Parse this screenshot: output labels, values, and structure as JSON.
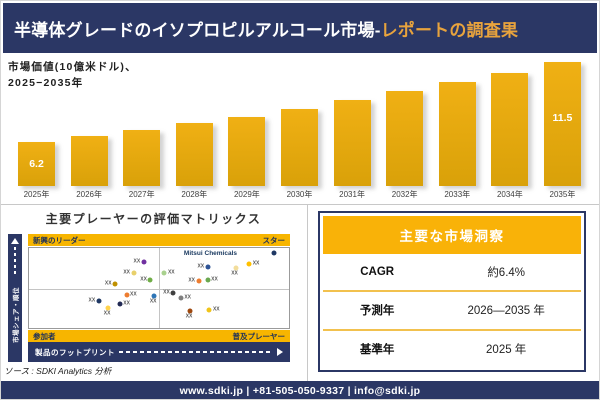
{
  "header": {
    "title_main": "半導体グレードのイソプロピルアルコール市場-",
    "title_accent": "レポートの調査果"
  },
  "chart": {
    "subtitle_line1": "市場価値(10億米ドル)、",
    "subtitle_line2": "2025−2035年",
    "first_bar_label": "6.2",
    "last_bar_label": "11.5"
  },
  "chart_data": [
    {
      "type": "bar",
      "title": "市場価値(10億米ドル)、2025−2035年",
      "categories": [
        "2025年",
        "2026年",
        "2027年",
        "2028年",
        "2029年",
        "2030年",
        "2031年",
        "2032年",
        "2033年",
        "2034年",
        "2035年"
      ],
      "values": [
        6.2,
        6.6,
        7.0,
        7.5,
        7.9,
        8.4,
        9.0,
        9.6,
        10.2,
        10.8,
        11.5
      ],
      "unit": "10億米ドル",
      "labeled_values": {
        "2025年": 6.2,
        "2035年": 11.5
      },
      "bar_color": "#E3A90F",
      "axis_note": "y軸は非ゼロ起点、目盛り非表示、最初と最後の棒のみデータラベル表示"
    },
    {
      "type": "scatter",
      "title": "主要プレーヤーの評価マトリックス",
      "xlabel": "製品のフットプリント",
      "ylabel": "市場シェア・順位",
      "quadrants": {
        "top_left": "新興のリーダー",
        "top_right": "スター",
        "bottom_left": "参加者",
        "bottom_right": "普及プレーヤー"
      },
      "named_point": {
        "label": "Mitsui Chemicals",
        "x": 69.8,
        "y": 2.5
      },
      "points": [
        {
          "x": 44.1,
          "y": 17.4,
          "color": "#7030A0",
          "label": "XX",
          "label_pos": "l"
        },
        {
          "x": 40.2,
          "y": 31.7,
          "color": "#E8D06B",
          "label": "XX",
          "label_pos": "l"
        },
        {
          "x": 46.7,
          "y": 40.0,
          "color": "#70AD47",
          "label": "XX",
          "label_pos": "l"
        },
        {
          "x": 33.1,
          "y": 44.8,
          "color": "#BF9000",
          "label": "XX",
          "label_pos": "l"
        },
        {
          "x": 52.1,
          "y": 31.7,
          "color": "#A9D18E",
          "label": "XX",
          "label_pos": "r"
        },
        {
          "x": 68.7,
          "y": 23.3,
          "color": "#2F5496",
          "label": "XX",
          "label_pos": "l"
        },
        {
          "x": 79.5,
          "y": 24.5,
          "color": "#F2DD9B",
          "label": "XX",
          "label_pos": "b"
        },
        {
          "x": 84.7,
          "y": 19.4,
          "color": "#FFC000",
          "label": "XX",
          "label_pos": "r"
        },
        {
          "x": 94.3,
          "y": 6.0,
          "color": "#1F3864",
          "label": "",
          "label_pos": "r"
        },
        {
          "x": 65.2,
          "y": 41.7,
          "color": "#ED7D31",
          "label": "XX",
          "label_pos": "l"
        },
        {
          "x": 68.7,
          "y": 40.5,
          "color": "#6AA84F",
          "label": "XX",
          "label_pos": "r"
        },
        {
          "x": 37.5,
          "y": 58.7,
          "color": "#ED7D31",
          "label": "XX",
          "label_pos": "r"
        },
        {
          "x": 48.2,
          "y": 59.9,
          "color": "#2E75B6",
          "label": "XX",
          "label_pos": "b"
        },
        {
          "x": 26.8,
          "y": 66.2,
          "color": "#1F3864",
          "label": "XX",
          "label_pos": "l"
        },
        {
          "x": 34.9,
          "y": 70.2,
          "color": "#222A54",
          "label": "XX",
          "label_pos": "r"
        },
        {
          "x": 30.5,
          "y": 74.5,
          "color": "#FFD34D",
          "label": "XX",
          "label_pos": "b"
        },
        {
          "x": 55.5,
          "y": 56.3,
          "color": "#404040",
          "label": "XX",
          "label_pos": "l"
        },
        {
          "x": 58.4,
          "y": 62.3,
          "color": "#7F7F7F",
          "label": "XX",
          "label_pos": "r"
        },
        {
          "x": 62.0,
          "y": 78.9,
          "color": "#9E480E",
          "label": "XX",
          "label_pos": "b"
        },
        {
          "x": 69.4,
          "y": 76.9,
          "color": "#F0C419",
          "label": "XX",
          "label_pos": "r"
        }
      ]
    }
  ],
  "matrix": {
    "section_title": "主要プレーヤーの評価マトリックス",
    "quadrant_top_left": "新興のリーダー",
    "quadrant_top_right": "スター",
    "quadrant_bottom_left": "参加者",
    "quadrant_bottom_right": "普及プレーヤー",
    "x_axis_label": "製品のフットプリント",
    "y_axis_label": "市場シェア・順位",
    "highlight_company": "Mitsui Chemicals"
  },
  "insights": {
    "header": "主要な市場洞察",
    "rows": [
      {
        "label": "CAGR",
        "value": "約6.4%"
      },
      {
        "label": "予測年",
        "value": "2026—2035 年"
      },
      {
        "label": "基準年",
        "value": "2025 年"
      }
    ]
  },
  "source": "ソース : SDKI Analytics 分析",
  "footer": "www.sdki.jp | +81-505-050-9337 | info@sdki.jp",
  "colors": {
    "navy": "#2B3765",
    "band_gold": "#F7B500",
    "table_gold": "#F9B208",
    "accent_title": "#E8A33D",
    "bar_gradient_top": "#F0B014",
    "bar_gradient_bottom": "#D9A109"
  }
}
